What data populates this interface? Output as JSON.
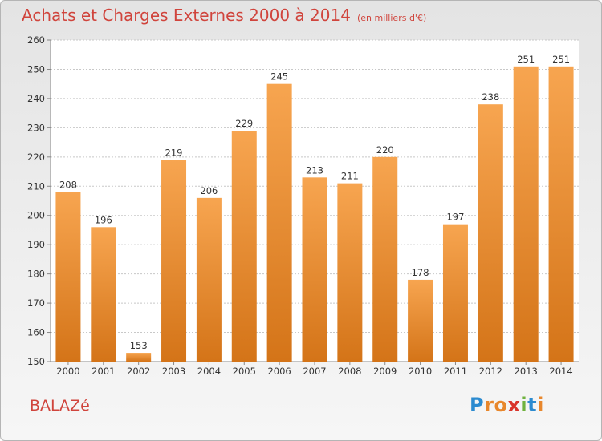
{
  "header": {
    "title": "Achats et Charges Externes 2000 à 2014",
    "unit": "(en milliers d'€)"
  },
  "footer": {
    "town": "BALAZé",
    "brand_letters": [
      {
        "char": "P",
        "color": "#2c8bd0"
      },
      {
        "char": "r",
        "color": "#e8872c"
      },
      {
        "char": "o",
        "color": "#e8872c"
      },
      {
        "char": "x",
        "color": "#d9342b"
      },
      {
        "char": "i",
        "color": "#6fb23e"
      },
      {
        "char": "t",
        "color": "#2c8bd0"
      },
      {
        "char": "i",
        "color": "#e8872c"
      }
    ]
  },
  "colors": {
    "bar_light": "#f7a550",
    "bar_dark": "#d47418",
    "title": "#d0443c"
  },
  "chart_data": {
    "type": "bar",
    "categories": [
      "2000",
      "2001",
      "2002",
      "2003",
      "2004",
      "2005",
      "2006",
      "2007",
      "2008",
      "2009",
      "2010",
      "2011",
      "2012",
      "2013",
      "2014"
    ],
    "values": [
      208,
      196,
      153,
      219,
      206,
      229,
      245,
      213,
      211,
      220,
      178,
      197,
      238,
      251,
      251
    ],
    "ylim": [
      150,
      260
    ],
    "yticks": [
      150,
      160,
      170,
      180,
      190,
      200,
      210,
      220,
      230,
      240,
      250,
      260
    ],
    "grid": true
  }
}
